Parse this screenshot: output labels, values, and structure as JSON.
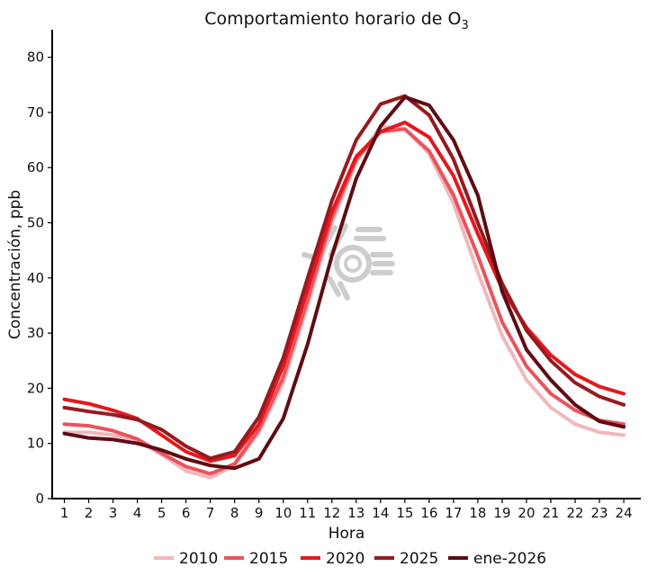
{
  "chart_data": {
    "type": "line",
    "title": "Comportamiento horario de O",
    "title_subscript": "3",
    "xlabel": "Hora",
    "ylabel": "Concentración, ppb",
    "x": [
      1,
      2,
      3,
      4,
      5,
      6,
      7,
      8,
      9,
      10,
      11,
      12,
      13,
      14,
      15,
      16,
      17,
      18,
      19,
      20,
      21,
      22,
      23,
      24
    ],
    "xlim": [
      0.5,
      24.7
    ],
    "ylim": [
      0,
      85
    ],
    "yticks": [
      0,
      10,
      20,
      30,
      40,
      50,
      60,
      70,
      80
    ],
    "grid": false,
    "legend_position": "bottom",
    "series": [
      {
        "name": "2010",
        "color": "#f0b8bc",
        "values": [
          12.0,
          12.0,
          11.5,
          10.5,
          8.0,
          5.0,
          3.8,
          6.0,
          12.0,
          21.0,
          35.0,
          50.0,
          61.0,
          67.5,
          67.0,
          62.5,
          53.5,
          41.0,
          29.5,
          21.5,
          16.5,
          13.5,
          12.0,
          11.5
        ]
      },
      {
        "name": "2015",
        "color": "#ea535d",
        "values": [
          13.5,
          13.2,
          12.3,
          10.8,
          8.2,
          5.8,
          4.5,
          6.3,
          12.5,
          22.0,
          36.0,
          51.0,
          61.5,
          66.5,
          67.0,
          63.0,
          55.0,
          44.0,
          32.0,
          24.0,
          19.0,
          16.0,
          14.2,
          13.5
        ]
      },
      {
        "name": "2020",
        "color": "#e3191f",
        "values": [
          18.0,
          17.2,
          16.0,
          14.5,
          11.5,
          8.5,
          6.8,
          7.8,
          13.5,
          24.0,
          38.0,
          52.0,
          62.0,
          66.5,
          68.2,
          65.5,
          58.5,
          48.0,
          38.0,
          31.0,
          26.0,
          22.5,
          20.3,
          19.0
        ]
      },
      {
        "name": "2025",
        "color": "#951b20",
        "values": [
          16.5,
          15.8,
          15.2,
          14.3,
          12.5,
          9.5,
          7.3,
          8.5,
          14.8,
          25.5,
          40.0,
          54.0,
          65.0,
          71.5,
          73.0,
          69.5,
          61.5,
          50.0,
          39.0,
          30.5,
          25.0,
          21.0,
          18.5,
          17.0
        ]
      },
      {
        "name": "ene-2026",
        "color": "#5e0c13",
        "values": [
          11.8,
          11.0,
          10.7,
          10.0,
          8.8,
          7.2,
          6.0,
          5.5,
          7.2,
          14.5,
          28.0,
          44.0,
          58.0,
          67.5,
          72.8,
          71.3,
          65.0,
          55.0,
          37.5,
          27.0,
          21.5,
          17.0,
          14.0,
          13.0
        ]
      }
    ]
  }
}
